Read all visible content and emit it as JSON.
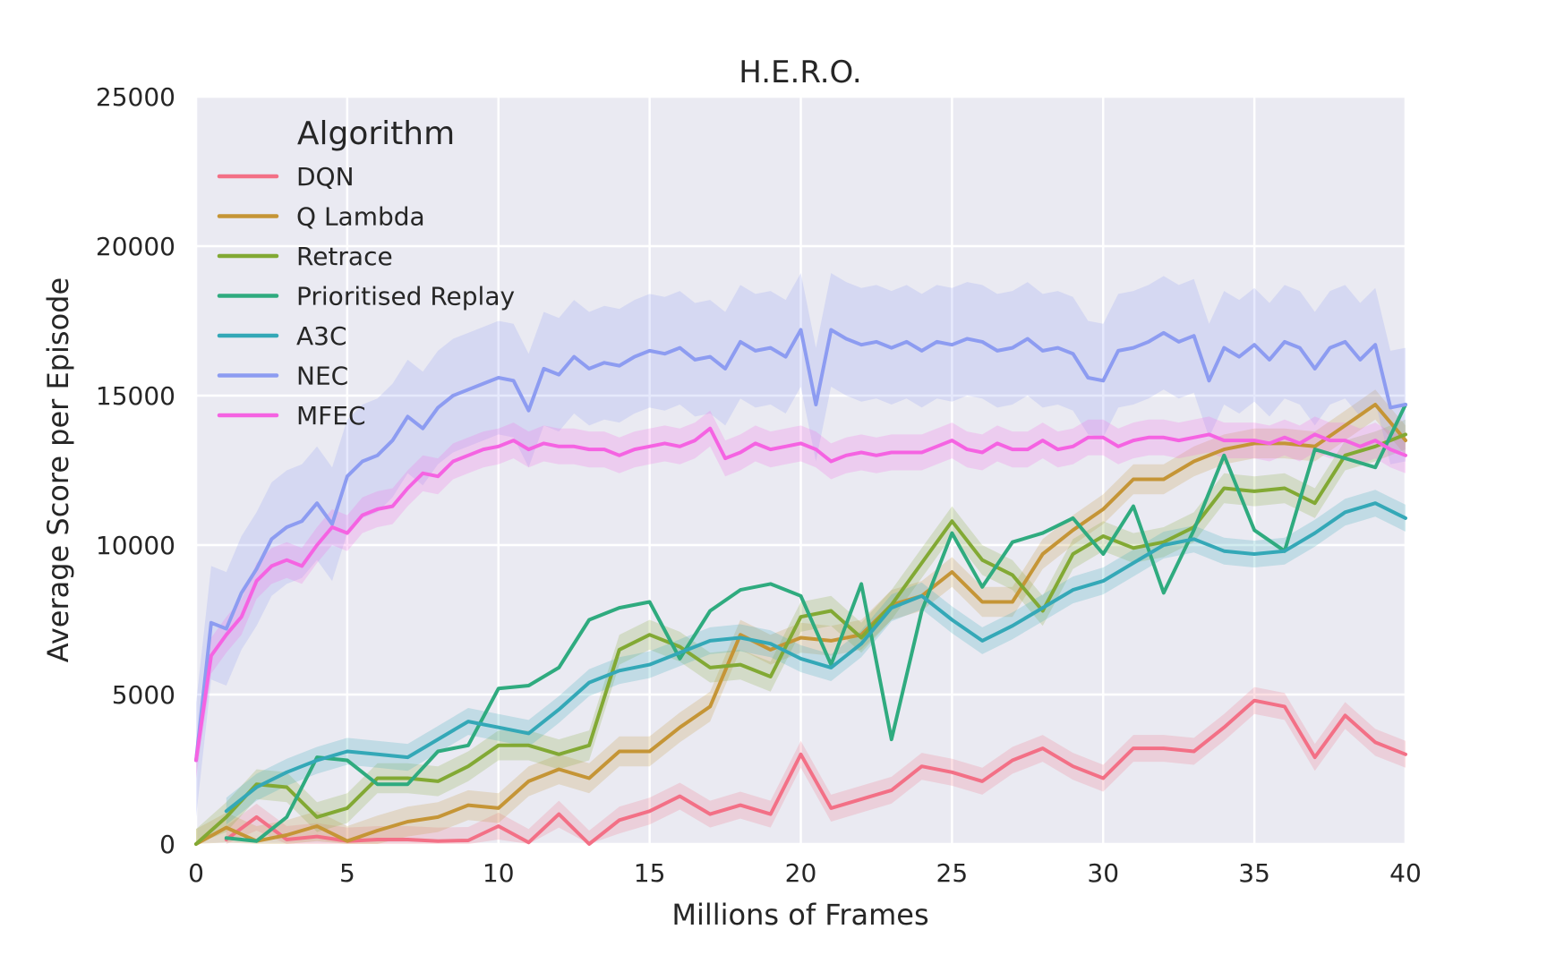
{
  "chart_data": {
    "type": "line",
    "title": "H.E.R.O.",
    "xlabel": "Millions of Frames",
    "ylabel": "Average Score per Episode",
    "xlim": [
      0,
      40
    ],
    "ylim": [
      0,
      25000
    ],
    "xticks": [
      0,
      5,
      10,
      15,
      20,
      25,
      30,
      35,
      40
    ],
    "yticks": [
      0,
      5000,
      10000,
      15000,
      20000,
      25000
    ],
    "grid": true,
    "legend": {
      "title": "Algorithm",
      "position": "top-left"
    },
    "series": [
      {
        "name": "DQN",
        "color": "#f37086",
        "x": [
          1,
          2,
          3,
          4,
          5,
          6,
          7,
          8,
          9,
          10,
          11,
          12,
          13,
          14,
          15,
          16,
          17,
          18,
          19,
          20,
          21,
          22,
          23,
          24,
          25,
          26,
          27,
          28,
          29,
          30,
          31,
          32,
          33,
          34,
          35,
          36,
          37,
          38,
          39,
          40
        ],
        "y": [
          150,
          900,
          150,
          250,
          100,
          150,
          150,
          100,
          120,
          600,
          50,
          1000,
          0,
          800,
          1100,
          1600,
          1000,
          1300,
          1000,
          3000,
          1200,
          1500,
          1800,
          2600,
          2400,
          2100,
          2800,
          3200,
          2600,
          2200,
          3200,
          3200,
          3100,
          3900,
          4800,
          4600,
          2900,
          4300,
          3400,
          3000
        ],
        "band": 450
      },
      {
        "name": "Q Lambda",
        "color": "#c59536",
        "x": [
          0,
          1,
          2,
          3,
          4,
          5,
          6,
          7,
          8,
          9,
          10,
          11,
          12,
          13,
          14,
          15,
          16,
          17,
          18,
          19,
          20,
          21,
          22,
          23,
          24,
          25,
          26,
          27,
          28,
          29,
          30,
          31,
          32,
          33,
          34,
          35,
          36,
          37,
          38,
          39,
          40
        ],
        "y": [
          0,
          550,
          100,
          300,
          600,
          100,
          450,
          750,
          900,
          1300,
          1200,
          2100,
          2500,
          2200,
          3100,
          3100,
          3900,
          4600,
          7000,
          6500,
          6900,
          6800,
          7000,
          8000,
          8300,
          9100,
          8100,
          8100,
          9700,
          10500,
          11200,
          12200,
          12200,
          12800,
          13200,
          13400,
          13400,
          13300,
          14000,
          14700,
          13500
        ],
        "band": 500
      },
      {
        "name": "Retrace",
        "color": "#82a934",
        "x": [
          0,
          1,
          2,
          3,
          4,
          5,
          6,
          7,
          8,
          9,
          10,
          11,
          12,
          13,
          14,
          15,
          16,
          17,
          18,
          19,
          20,
          21,
          22,
          23,
          24,
          25,
          26,
          27,
          28,
          29,
          30,
          31,
          32,
          33,
          34,
          35,
          36,
          37,
          38,
          39,
          40
        ],
        "y": [
          0,
          900,
          2000,
          1900,
          900,
          1200,
          2200,
          2200,
          2100,
          2600,
          3300,
          3300,
          3000,
          3300,
          6500,
          7000,
          6600,
          5900,
          6000,
          5600,
          7600,
          7800,
          6900,
          8000,
          9400,
          10800,
          9500,
          9000,
          7800,
          9700,
          10300,
          9900,
          10100,
          10600,
          11900,
          11800,
          11900,
          11400,
          13000,
          13300,
          13700
        ],
        "band": 500
      },
      {
        "name": "Prioritised Replay",
        "color": "#2fab7f",
        "x": [
          1,
          2,
          3,
          4,
          5,
          6,
          7,
          8,
          9,
          10,
          11,
          12,
          13,
          14,
          15,
          16,
          17,
          18,
          19,
          20,
          21,
          22,
          23,
          24,
          25,
          26,
          27,
          28,
          29,
          30,
          31,
          32,
          33,
          34,
          35,
          36,
          37,
          38,
          39,
          40
        ],
        "y": [
          200,
          100,
          900,
          2900,
          2800,
          2000,
          2000,
          3100,
          3300,
          5200,
          5300,
          5900,
          7500,
          7900,
          8100,
          6200,
          7800,
          8500,
          8700,
          8300,
          6000,
          8700,
          3500,
          7800,
          10400,
          8600,
          10100,
          10400,
          10900,
          9700,
          11300,
          8400,
          10500,
          13000,
          10500,
          9800,
          13200,
          12900,
          12600,
          14700
        ],
        "band": 0
      },
      {
        "name": "A3C",
        "color": "#34a8b7",
        "x": [
          1,
          2,
          3,
          4,
          5,
          6,
          7,
          8,
          9,
          10,
          11,
          12,
          13,
          14,
          15,
          16,
          17,
          18,
          19,
          20,
          21,
          22,
          23,
          24,
          25,
          26,
          27,
          28,
          29,
          30,
          31,
          32,
          33,
          34,
          35,
          36,
          37,
          38,
          39,
          40
        ],
        "y": [
          1100,
          1900,
          2400,
          2800,
          3100,
          3000,
          2900,
          3500,
          4100,
          3900,
          3700,
          4500,
          5400,
          5800,
          6000,
          6400,
          6800,
          6900,
          6700,
          6200,
          5900,
          6700,
          7900,
          8300,
          7500,
          6800,
          7300,
          7900,
          8500,
          8800,
          9400,
          10000,
          10200,
          9800,
          9700,
          9800,
          10400,
          11100,
          11400,
          10900
        ],
        "band": 450
      },
      {
        "name": "NEC",
        "color": "#8d9cf1",
        "x": [
          0,
          0.5,
          1,
          1.5,
          2,
          2.5,
          3,
          3.5,
          4,
          4.5,
          5,
          5.5,
          6,
          6.5,
          7,
          7.5,
          8,
          8.5,
          9,
          9.5,
          10,
          10.5,
          11,
          11.5,
          12,
          12.5,
          13,
          13.5,
          14,
          14.5,
          15,
          15.5,
          16,
          16.5,
          17,
          17.5,
          18,
          18.5,
          19,
          19.5,
          20,
          20.5,
          21,
          21.5,
          22,
          22.5,
          23,
          23.5,
          24,
          24.5,
          25,
          25.5,
          26,
          26.5,
          27,
          27.5,
          28,
          28.5,
          29,
          29.5,
          30,
          30.5,
          31,
          31.5,
          32,
          32.5,
          33,
          33.5,
          34,
          34.5,
          35,
          35.5,
          36,
          36.5,
          37,
          37.5,
          38,
          38.5,
          39,
          39.5,
          40
        ],
        "y": [
          2800,
          7400,
          7200,
          8400,
          9200,
          10200,
          10600,
          10800,
          11400,
          10700,
          12300,
          12800,
          13000,
          13500,
          14300,
          13900,
          14600,
          15000,
          15200,
          15400,
          15600,
          15500,
          14500,
          15900,
          15700,
          16300,
          15900,
          16100,
          16000,
          16300,
          16500,
          16400,
          16600,
          16200,
          16300,
          15900,
          16800,
          16500,
          16600,
          16300,
          17200,
          14700,
          17200,
          16900,
          16700,
          16800,
          16600,
          16800,
          16500,
          16800,
          16700,
          16900,
          16800,
          16500,
          16600,
          16900,
          16500,
          16600,
          16400,
          15600,
          15500,
          16500,
          16600,
          16800,
          17100,
          16800,
          17000,
          15500,
          16600,
          16300,
          16700,
          16200,
          16800,
          16600,
          15900,
          16600,
          16800,
          16200,
          16700,
          14600,
          14700
        ],
        "band": 1900
      },
      {
        "name": "MFEC",
        "color": "#f563e2",
        "x": [
          0,
          0.5,
          1,
          1.5,
          2,
          2.5,
          3,
          3.5,
          4,
          4.5,
          5,
          5.5,
          6,
          6.5,
          7,
          7.5,
          8,
          8.5,
          9,
          9.5,
          10,
          10.5,
          11,
          11.5,
          12,
          12.5,
          13,
          13.5,
          14,
          14.5,
          15,
          15.5,
          16,
          16.5,
          17,
          17.5,
          18,
          18.5,
          19,
          19.5,
          20,
          20.5,
          21,
          21.5,
          22,
          22.5,
          23,
          23.5,
          24,
          24.5,
          25,
          25.5,
          26,
          26.5,
          27,
          27.5,
          28,
          28.5,
          29,
          29.5,
          30,
          30.5,
          31,
          31.5,
          32,
          32.5,
          33,
          33.5,
          34,
          34.5,
          35,
          35.5,
          36,
          36.5,
          37,
          37.5,
          38,
          38.5,
          39,
          39.5,
          40
        ],
        "y": [
          2800,
          6300,
          7000,
          7600,
          8800,
          9300,
          9500,
          9300,
          10000,
          10600,
          10400,
          11000,
          11200,
          11300,
          11900,
          12400,
          12300,
          12800,
          13000,
          13200,
          13300,
          13500,
          13200,
          13400,
          13300,
          13300,
          13200,
          13200,
          13000,
          13200,
          13300,
          13400,
          13300,
          13500,
          13900,
          12900,
          13100,
          13400,
          13200,
          13300,
          13400,
          13200,
          12800,
          13000,
          13100,
          13000,
          13100,
          13100,
          13100,
          13300,
          13500,
          13200,
          13100,
          13400,
          13200,
          13200,
          13500,
          13200,
          13300,
          13600,
          13600,
          13300,
          13500,
          13600,
          13600,
          13500,
          13600,
          13700,
          13500,
          13500,
          13500,
          13400,
          13600,
          13400,
          13700,
          13500,
          13500,
          13300,
          13500,
          13200,
          13000
        ],
        "band": 600
      }
    ]
  }
}
